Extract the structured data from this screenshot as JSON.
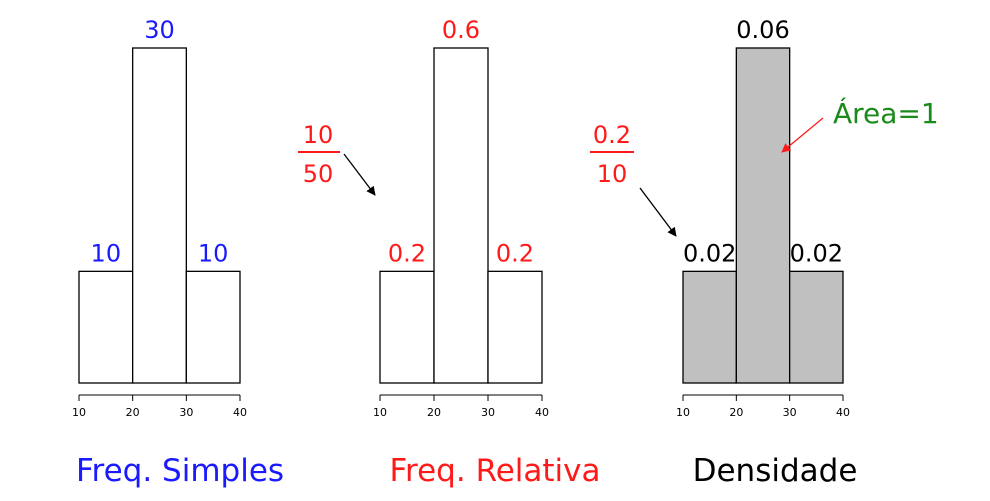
{
  "colors": {
    "blue": "#1a1aff",
    "red": "#ff1a1a",
    "black": "#000000",
    "green": "#1a8a1a",
    "gray_fill": "#c0c0c0"
  },
  "chart_data": [
    {
      "type": "bar",
      "histogram": true,
      "bins": [
        [
          10,
          20
        ],
        [
          20,
          30
        ],
        [
          30,
          40
        ]
      ],
      "values": [
        10,
        30,
        10
      ],
      "value_labels": [
        "10",
        "30",
        "10"
      ],
      "ticks": [
        "10",
        "20",
        "30",
        "40"
      ],
      "title": "Freq. Simples",
      "title_color": "blue",
      "label_color": "blue",
      "filled": false
    },
    {
      "type": "bar",
      "histogram": true,
      "bins": [
        [
          10,
          20
        ],
        [
          20,
          30
        ],
        [
          30,
          40
        ]
      ],
      "values": [
        0.2,
        0.6,
        0.2
      ],
      "value_labels": [
        "0.2",
        "0.6",
        "0.2"
      ],
      "ticks": [
        "10",
        "20",
        "30",
        "40"
      ],
      "title": "Freq. Relativa",
      "title_color": "red",
      "label_color": "red",
      "filled": false,
      "annotation": {
        "numerator": "10",
        "denominator": "50",
        "color": "red"
      }
    },
    {
      "type": "bar",
      "histogram": true,
      "bins": [
        [
          10,
          20
        ],
        [
          20,
          30
        ],
        [
          30,
          40
        ]
      ],
      "values": [
        0.02,
        0.06,
        0.02
      ],
      "value_labels": [
        "0.02",
        "0.06",
        "0.02"
      ],
      "ticks": [
        "10",
        "20",
        "30",
        "40"
      ],
      "title": "Densidade",
      "title_color": "black",
      "label_color": "black",
      "filled": true,
      "annotation": {
        "numerator": "0.2",
        "denominator": "10",
        "color": "red"
      },
      "area_note": "Área=1",
      "area_note_color": "green"
    }
  ]
}
